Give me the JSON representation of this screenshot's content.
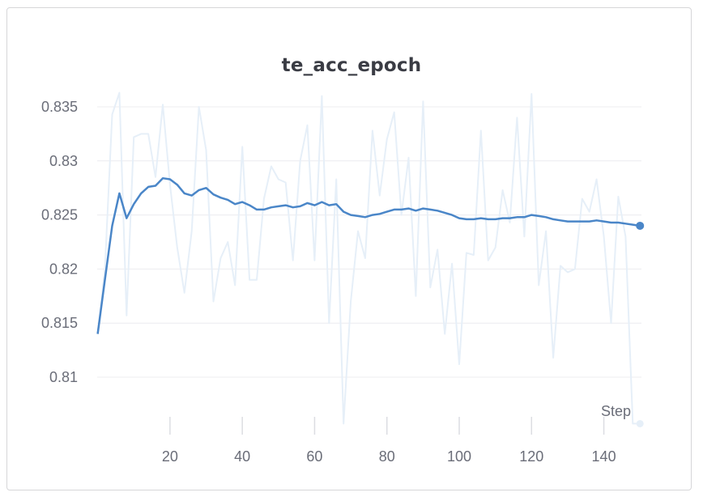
{
  "chart_data": {
    "type": "line",
    "title": "te_acc_epoch",
    "xlabel": "Step",
    "ylabel": "",
    "xlim": [
      0,
      150
    ],
    "ylim": [
      0.8055,
      0.8365
    ],
    "xticks": [
      20,
      40,
      60,
      80,
      100,
      120,
      140
    ],
    "yticks": [
      0.81,
      0.815,
      0.82,
      0.825,
      0.83,
      0.835
    ],
    "ytick_labels": [
      "0.81",
      "0.815",
      "0.82",
      "0.825",
      "0.83",
      "0.835"
    ],
    "grid": true,
    "colors": {
      "smoothed": "#4a86c8",
      "raw": "#e6eff8"
    },
    "series": [
      {
        "role": "raw",
        "x": [
          0,
          2,
          4,
          6,
          8,
          10,
          12,
          14,
          16,
          18,
          20,
          22,
          24,
          26,
          28,
          30,
          32,
          34,
          36,
          38,
          40,
          42,
          44,
          46,
          48,
          50,
          52,
          54,
          56,
          58,
          60,
          62,
          64,
          66,
          68,
          70,
          72,
          74,
          76,
          78,
          80,
          82,
          84,
          86,
          88,
          90,
          92,
          94,
          96,
          98,
          100,
          102,
          104,
          106,
          108,
          110,
          112,
          114,
          116,
          118,
          120,
          122,
          124,
          126,
          128,
          130,
          132,
          134,
          136,
          138,
          140,
          142,
          144,
          146,
          148,
          150
        ],
        "y": [
          0.814,
          0.82,
          0.8343,
          0.8363,
          0.8157,
          0.8322,
          0.8325,
          0.8325,
          0.8285,
          0.8352,
          0.8278,
          0.822,
          0.8178,
          0.8235,
          0.835,
          0.831,
          0.817,
          0.821,
          0.8225,
          0.8185,
          0.8313,
          0.819,
          0.819,
          0.8265,
          0.8295,
          0.8283,
          0.828,
          0.8208,
          0.83,
          0.8333,
          0.8208,
          0.836,
          0.815,
          0.8283,
          0.8057,
          0.817,
          0.8235,
          0.821,
          0.8328,
          0.8268,
          0.832,
          0.8345,
          0.825,
          0.8303,
          0.8175,
          0.8355,
          0.8183,
          0.8218,
          0.814,
          0.8205,
          0.8112,
          0.8215,
          0.8213,
          0.8328,
          0.8208,
          0.822,
          0.8273,
          0.8243,
          0.834,
          0.823,
          0.8362,
          0.8185,
          0.8235,
          0.8118,
          0.8203,
          0.8197,
          0.82,
          0.8265,
          0.8253,
          0.8283,
          0.823,
          0.815,
          0.8267,
          0.823,
          0.8057,
          0.8057
        ]
      },
      {
        "role": "smoothed",
        "x": [
          0,
          2,
          4,
          6,
          8,
          10,
          12,
          14,
          16,
          18,
          20,
          22,
          24,
          26,
          28,
          30,
          32,
          34,
          36,
          38,
          40,
          42,
          44,
          46,
          48,
          50,
          52,
          54,
          56,
          58,
          60,
          62,
          64,
          66,
          68,
          70,
          72,
          74,
          76,
          78,
          80,
          82,
          84,
          86,
          88,
          90,
          92,
          94,
          96,
          98,
          100,
          102,
          104,
          106,
          108,
          110,
          112,
          114,
          116,
          118,
          120,
          122,
          124,
          126,
          128,
          130,
          132,
          134,
          136,
          138,
          140,
          142,
          144,
          146,
          148,
          150
        ],
        "y": [
          0.814,
          0.819,
          0.824,
          0.827,
          0.8247,
          0.826,
          0.827,
          0.8276,
          0.8277,
          0.8284,
          0.8283,
          0.8278,
          0.827,
          0.8268,
          0.8273,
          0.8275,
          0.8269,
          0.8266,
          0.8264,
          0.826,
          0.8262,
          0.8259,
          0.8255,
          0.8255,
          0.8257,
          0.8258,
          0.8259,
          0.8257,
          0.8258,
          0.8261,
          0.8259,
          0.8262,
          0.8259,
          0.826,
          0.8253,
          0.825,
          0.8249,
          0.8248,
          0.825,
          0.8251,
          0.8253,
          0.8255,
          0.8255,
          0.8256,
          0.8254,
          0.8256,
          0.8255,
          0.8254,
          0.8252,
          0.825,
          0.8247,
          0.8246,
          0.8246,
          0.8247,
          0.8246,
          0.8246,
          0.8247,
          0.8247,
          0.8248,
          0.8248,
          0.825,
          0.8249,
          0.8248,
          0.8246,
          0.8245,
          0.8244,
          0.8244,
          0.8244,
          0.8244,
          0.8245,
          0.8244,
          0.8243,
          0.8243,
          0.8242,
          0.8241,
          0.824
        ]
      }
    ]
  }
}
